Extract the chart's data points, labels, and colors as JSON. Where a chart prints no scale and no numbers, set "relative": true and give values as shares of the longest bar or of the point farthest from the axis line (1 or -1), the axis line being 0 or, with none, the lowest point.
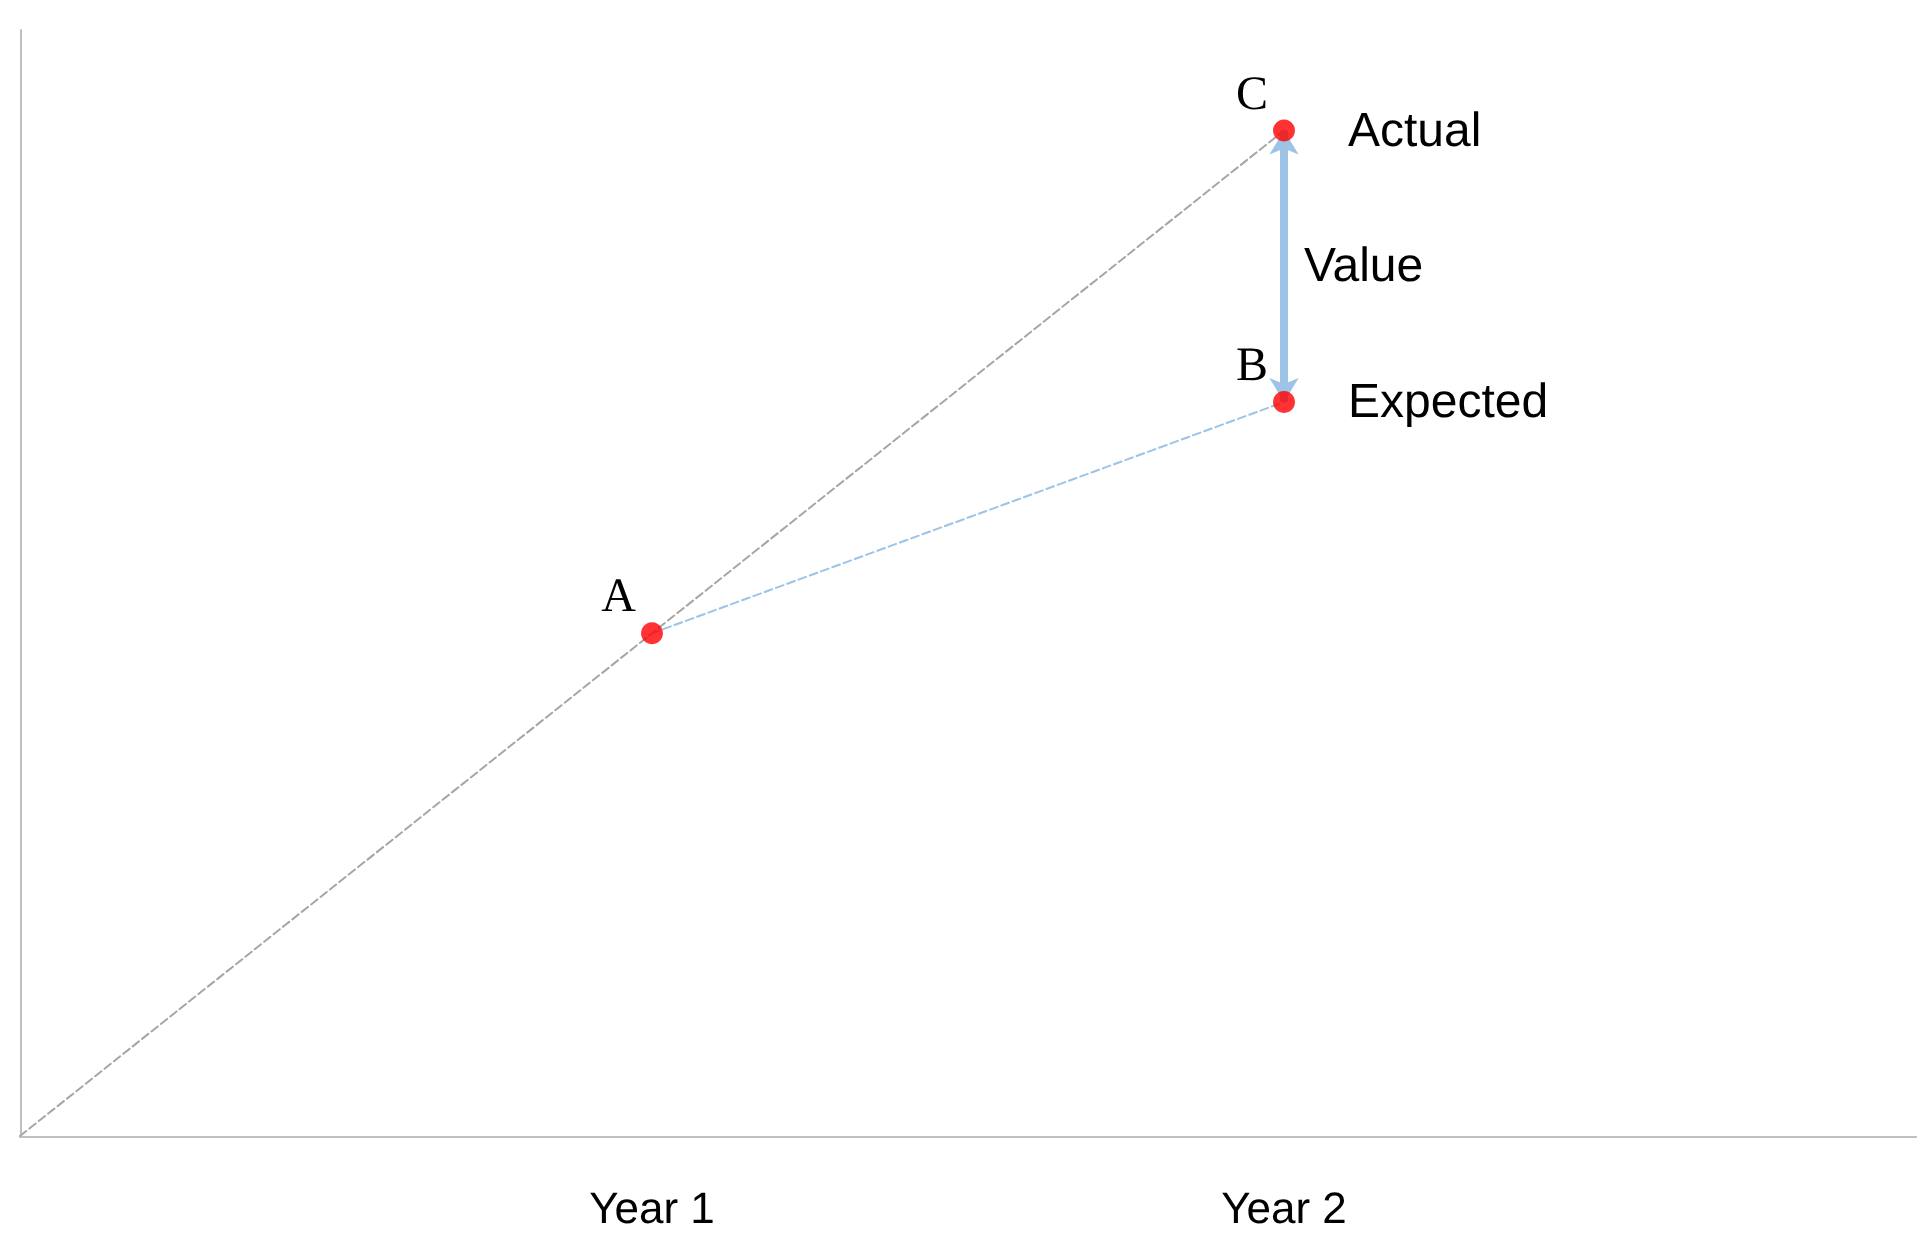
{
  "chart_data": {
    "type": "line",
    "relative": true,
    "categories": [
      null,
      "Year 1",
      "Year 2",
      null
    ],
    "series": [
      {
        "color": "#a6a6a6",
        "values": [
          0,
          0.5,
          1,
          null
        ],
        "line_style": "dashed",
        "marker": "none"
      },
      {
        "color": "#9dc3e6",
        "values": [
          null,
          0.5,
          0.73,
          null
        ],
        "line_style": "dashed",
        "marker": "none"
      },
      {
        "type": "scatter",
        "color": "#ff0000",
        "x": [
          "Year 1",
          "Year 2",
          "Year 2"
        ],
        "values": [
          0.5,
          0.73,
          1
        ],
        "marker": "circle"
      }
    ],
    "annotations": [
      {
        "text": "A",
        "x": "Year 1",
        "y": 0.5
      },
      {
        "text": "B",
        "x": "Year 2",
        "y": 0.73
      },
      {
        "text": "C",
        "x": "Year 2",
        "y": 1
      },
      {
        "text": "Actual",
        "x": "Year 2",
        "y": 1
      },
      {
        "text": "Expected",
        "x": "Year 2",
        "y": 0.73
      },
      "Value"
    ],
    "grid": false,
    "tick_labels": "x"
  }
}
